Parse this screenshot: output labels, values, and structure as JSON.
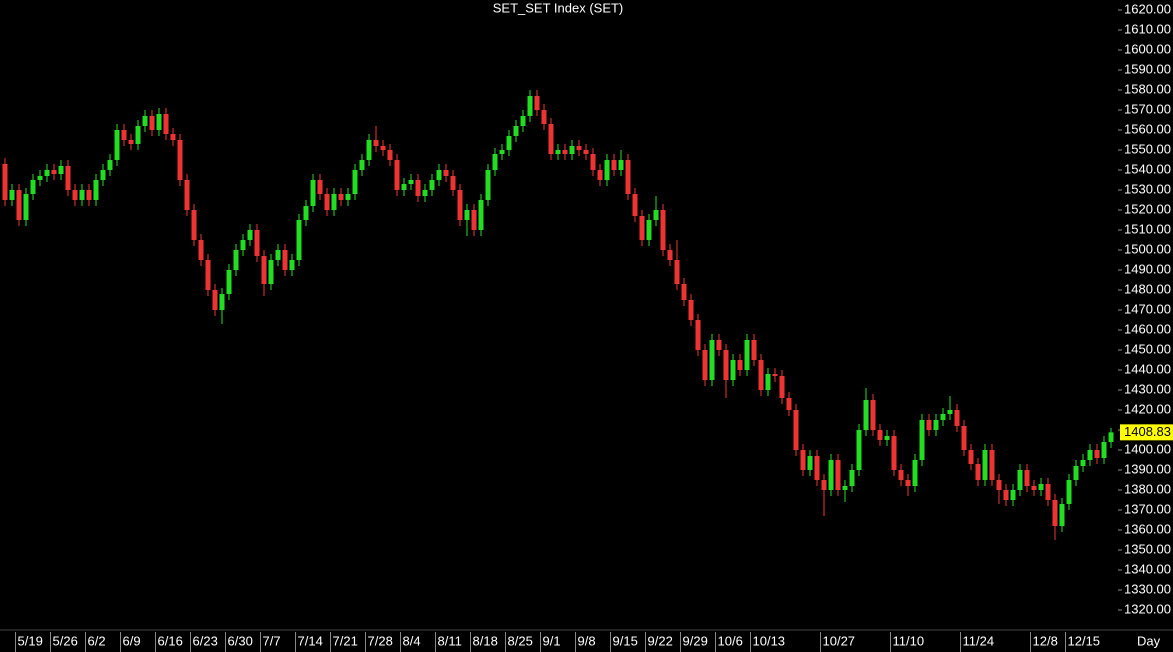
{
  "chart_data": {
    "type": "candlestick",
    "title": "SET_SET Index (SET)",
    "period": "Day",
    "up_color": "#22dd22",
    "down_color": "#ee3333",
    "last_color": "#ffff00",
    "ylim": [
      1310,
      1625
    ],
    "yticks": [
      {
        "value": 1320,
        "label": "1320.00"
      },
      {
        "value": 1330,
        "label": "1330.00"
      },
      {
        "value": 1340,
        "label": "1340.00"
      },
      {
        "value": 1350,
        "label": "1350.00"
      },
      {
        "value": 1360,
        "label": "1360.00"
      },
      {
        "value": 1370,
        "label": "1370.00"
      },
      {
        "value": 1380,
        "label": "1380.00"
      },
      {
        "value": 1390,
        "label": "1390.00"
      },
      {
        "value": 1400,
        "label": "1400.00"
      },
      {
        "value": 1410,
        "label": "1410.00"
      },
      {
        "value": 1420,
        "label": "1420.00"
      },
      {
        "value": 1430,
        "label": "1430.00"
      },
      {
        "value": 1440,
        "label": "1440.00"
      },
      {
        "value": 1450,
        "label": "1450.00"
      },
      {
        "value": 1460,
        "label": "1460.00"
      },
      {
        "value": 1470,
        "label": "1470.00"
      },
      {
        "value": 1480,
        "label": "1480.00"
      },
      {
        "value": 1490,
        "label": "1490.00"
      },
      {
        "value": 1500,
        "label": "1500.00"
      },
      {
        "value": 1510,
        "label": "1510.00"
      },
      {
        "value": 1520,
        "label": "1520.00"
      },
      {
        "value": 1530,
        "label": "1530.00"
      },
      {
        "value": 1540,
        "label": "1540.00"
      },
      {
        "value": 1550,
        "label": "1550.00"
      },
      {
        "value": 1560,
        "label": "1560.00"
      },
      {
        "value": 1570,
        "label": "1570.00"
      },
      {
        "value": 1580,
        "label": "1580.00"
      },
      {
        "value": 1590,
        "label": "1590.00"
      },
      {
        "value": 1600,
        "label": "1600.00"
      },
      {
        "value": 1610,
        "label": "1610.00"
      },
      {
        "value": 1620,
        "label": "1620.00"
      }
    ],
    "categories": [
      null,
      null,
      "5/19",
      null,
      null,
      null,
      null,
      "5/26",
      null,
      null,
      null,
      null,
      "6/2",
      null,
      null,
      null,
      null,
      "6/9",
      null,
      null,
      null,
      null,
      "6/16",
      null,
      null,
      null,
      null,
      "6/23",
      null,
      null,
      null,
      null,
      "6/30",
      null,
      null,
      null,
      null,
      "7/7",
      null,
      null,
      null,
      null,
      "7/14",
      null,
      null,
      null,
      null,
      "7/21",
      null,
      null,
      null,
      null,
      "7/28",
      null,
      null,
      null,
      null,
      "8/4",
      null,
      null,
      null,
      null,
      "8/11",
      null,
      null,
      null,
      null,
      "8/18",
      null,
      null,
      null,
      null,
      "8/25",
      null,
      null,
      null,
      null,
      "9/1",
      null,
      null,
      null,
      null,
      "9/8",
      null,
      null,
      null,
      null,
      "9/15",
      null,
      null,
      null,
      null,
      "9/22",
      null,
      null,
      null,
      null,
      "9/29",
      null,
      null,
      null,
      null,
      "10/6",
      null,
      null,
      null,
      null,
      "10/13",
      null,
      null,
      null,
      null,
      null,
      null,
      null,
      null,
      null,
      "10/27",
      null,
      null,
      null,
      null,
      null,
      null,
      null,
      null,
      null,
      "11/10",
      null,
      null,
      null,
      null,
      null,
      null,
      null,
      null,
      null,
      "11/24",
      null,
      null,
      null,
      null,
      null,
      null,
      null,
      null,
      null,
      "12/8",
      null,
      null,
      null,
      null,
      "12/15",
      null,
      null,
      null,
      null,
      null,
      null
    ],
    "open": [
      1543,
      1525,
      1530,
      1515,
      1528,
      1535,
      1537,
      1540,
      1538,
      1542,
      1530,
      1525,
      1530,
      1525,
      1535,
      1540,
      1545,
      1560,
      1555,
      1553,
      1562,
      1567,
      1560,
      1568,
      1558,
      1555,
      1535,
      1520,
      1505,
      1495,
      1480,
      1470,
      1478,
      1490,
      1500,
      1505,
      1510,
      1497,
      1483,
      1495,
      1500,
      1490,
      1495,
      1515,
      1522,
      1535,
      1528,
      1520,
      1528,
      1525,
      1528,
      1540,
      1545,
      1555,
      1552,
      1550,
      1545,
      1530,
      1533,
      1535,
      1527,
      1530,
      1535,
      1540,
      1537,
      1530,
      1515,
      1520,
      1510,
      1525,
      1540,
      1548,
      1550,
      1557,
      1562,
      1567,
      1577,
      1570,
      1563,
      1548,
      1550,
      1548,
      1552,
      1550,
      1548,
      1540,
      1535,
      1545,
      1540,
      1545,
      1528,
      1517,
      1505,
      1515,
      1520,
      1500,
      1495,
      1483,
      1475,
      1465,
      1450,
      1435,
      1455,
      1450,
      1435,
      1445,
      1440,
      1455,
      1445,
      1430,
      1438,
      1437,
      1426,
      1420,
      1400,
      1390,
      1397,
      1385,
      1380,
      1395,
      1380,
      1382,
      1390,
      1410,
      1425,
      1410,
      1405,
      1407,
      1390,
      1385,
      1382,
      1395,
      1415,
      1410,
      1415,
      1418,
      1420,
      1412,
      1400,
      1393,
      1385,
      1400,
      1385,
      1380,
      1375,
      1380,
      1390,
      1382,
      1380,
      1383,
      1375,
      1362,
      1373,
      1385,
      1392,
      1395,
      1400,
      1396,
      1404
    ],
    "high": [
      1546,
      1533,
      1533,
      1531,
      1538,
      1540,
      1543,
      1543,
      1545,
      1545,
      1533,
      1533,
      1533,
      1538,
      1543,
      1548,
      1563,
      1563,
      1558,
      1565,
      1570,
      1570,
      1571,
      1571,
      1561,
      1558,
      1538,
      1523,
      1508,
      1498,
      1483,
      1481,
      1493,
      1503,
      1508,
      1513,
      1513,
      1500,
      1498,
      1503,
      1503,
      1498,
      1518,
      1525,
      1538,
      1538,
      1531,
      1531,
      1531,
      1531,
      1543,
      1548,
      1558,
      1562,
      1555,
      1553,
      1548,
      1536,
      1538,
      1538,
      1533,
      1538,
      1543,
      1543,
      1540,
      1533,
      1523,
      1523,
      1528,
      1543,
      1551,
      1553,
      1560,
      1565,
      1570,
      1580,
      1580,
      1573,
      1566,
      1553,
      1553,
      1555,
      1555,
      1553,
      1551,
      1543,
      1548,
      1548,
      1550,
      1548,
      1531,
      1520,
      1518,
      1527,
      1523,
      1503,
      1505,
      1486,
      1478,
      1468,
      1453,
      1458,
      1458,
      1453,
      1448,
      1448,
      1458,
      1458,
      1448,
      1441,
      1441,
      1440,
      1429,
      1423,
      1403,
      1400,
      1400,
      1388,
      1398,
      1398,
      1385,
      1393,
      1413,
      1431,
      1428,
      1413,
      1410,
      1410,
      1393,
      1388,
      1398,
      1418,
      1418,
      1418,
      1421,
      1427,
      1423,
      1415,
      1403,
      1396,
      1403,
      1403,
      1388,
      1383,
      1383,
      1393,
      1393,
      1385,
      1386,
      1386,
      1378,
      1376,
      1388,
      1395,
      1398,
      1403,
      1403,
      1407,
      1411
    ],
    "low": [
      1522,
      1522,
      1512,
      1512,
      1525,
      1532,
      1534,
      1535,
      1535,
      1527,
      1522,
      1522,
      1522,
      1522,
      1532,
      1537,
      1542,
      1552,
      1550,
      1550,
      1559,
      1557,
      1557,
      1555,
      1552,
      1532,
      1517,
      1502,
      1492,
      1477,
      1467,
      1463,
      1475,
      1487,
      1497,
      1502,
      1494,
      1477,
      1480,
      1492,
      1487,
      1487,
      1492,
      1512,
      1519,
      1525,
      1517,
      1517,
      1522,
      1522,
      1525,
      1537,
      1542,
      1549,
      1547,
      1542,
      1527,
      1527,
      1530,
      1524,
      1524,
      1527,
      1532,
      1534,
      1527,
      1512,
      1507,
      1507,
      1507,
      1522,
      1537,
      1545,
      1547,
      1554,
      1559,
      1564,
      1567,
      1560,
      1545,
      1545,
      1545,
      1545,
      1547,
      1545,
      1537,
      1532,
      1532,
      1537,
      1537,
      1525,
      1514,
      1502,
      1502,
      1512,
      1497,
      1492,
      1480,
      1472,
      1462,
      1447,
      1432,
      1432,
      1447,
      1426,
      1432,
      1437,
      1437,
      1442,
      1427,
      1427,
      1434,
      1423,
      1417,
      1397,
      1387,
      1387,
      1382,
      1367,
      1377,
      1377,
      1374,
      1379,
      1387,
      1407,
      1407,
      1402,
      1402,
      1387,
      1382,
      1377,
      1379,
      1392,
      1407,
      1407,
      1412,
      1415,
      1409,
      1397,
      1390,
      1382,
      1382,
      1382,
      1373,
      1372,
      1372,
      1377,
      1379,
      1377,
      1377,
      1372,
      1355,
      1359,
      1370,
      1382,
      1389,
      1392,
      1393,
      1393,
      1401
    ],
    "close": [
      1525,
      1530,
      1515,
      1528,
      1535,
      1537,
      1540,
      1538,
      1542,
      1530,
      1525,
      1530,
      1525,
      1535,
      1540,
      1545,
      1560,
      1555,
      1553,
      1562,
      1567,
      1560,
      1568,
      1558,
      1555,
      1535,
      1520,
      1505,
      1495,
      1480,
      1470,
      1478,
      1490,
      1500,
      1505,
      1510,
      1497,
      1483,
      1495,
      1500,
      1490,
      1495,
      1515,
      1522,
      1535,
      1528,
      1520,
      1528,
      1525,
      1528,
      1540,
      1545,
      1555,
      1552,
      1550,
      1545,
      1530,
      1533,
      1535,
      1527,
      1530,
      1535,
      1540,
      1537,
      1530,
      1515,
      1520,
      1510,
      1525,
      1540,
      1548,
      1550,
      1557,
      1562,
      1567,
      1577,
      1570,
      1563,
      1548,
      1550,
      1548,
      1552,
      1550,
      1548,
      1540,
      1535,
      1545,
      1540,
      1545,
      1528,
      1517,
      1505,
      1515,
      1520,
      1500,
      1495,
      1483,
      1475,
      1465,
      1450,
      1435,
      1455,
      1450,
      1435,
      1445,
      1440,
      1455,
      1445,
      1430,
      1438,
      1437,
      1426,
      1420,
      1400,
      1390,
      1397,
      1385,
      1380,
      1395,
      1380,
      1382,
      1390,
      1410,
      1425,
      1410,
      1405,
      1407,
      1390,
      1385,
      1382,
      1395,
      1415,
      1410,
      1415,
      1418,
      1420,
      1412,
      1400,
      1393,
      1385,
      1400,
      1385,
      1380,
      1375,
      1380,
      1390,
      1382,
      1380,
      1383,
      1375,
      1362,
      1373,
      1385,
      1392,
      1395,
      1400,
      1396,
      1404,
      1408.83
    ]
  }
}
